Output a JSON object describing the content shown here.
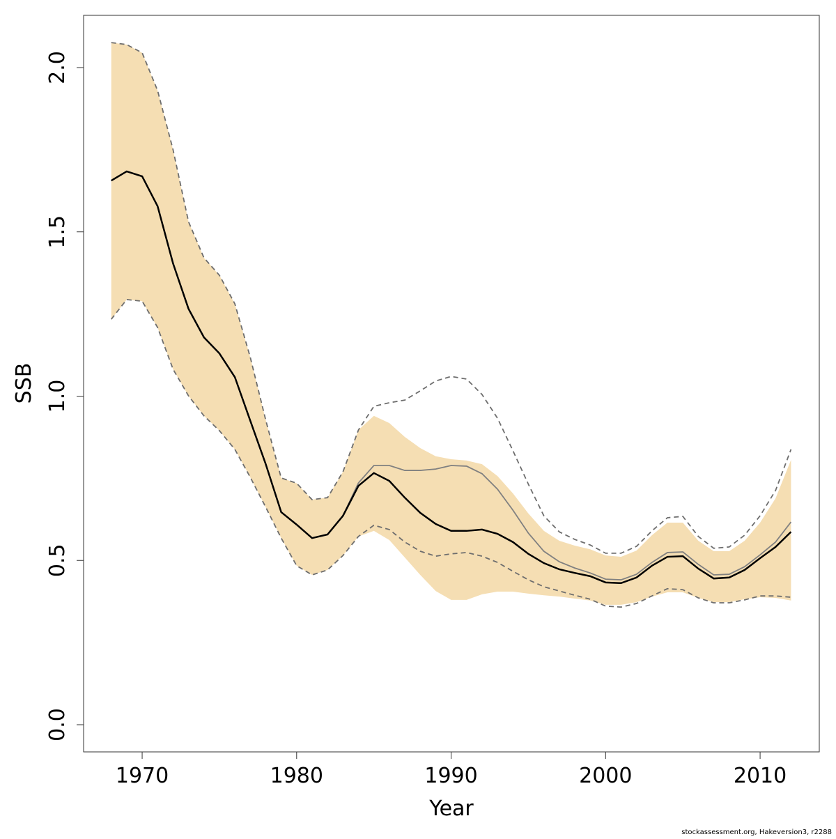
{
  "chart_data": {
    "type": "line",
    "x_label": "Year",
    "y_label": "SSB",
    "footnote": "stockassessment.org, Hakeversion3, r2288",
    "x": [
      1968,
      1969,
      1970,
      1971,
      1972,
      1973,
      1974,
      1975,
      1976,
      1977,
      1978,
      1979,
      1980,
      1981,
      1982,
      1983,
      1984,
      1985,
      1986,
      1987,
      1988,
      1989,
      1990,
      1991,
      1992,
      1993,
      1994,
      1995,
      1996,
      1997,
      1998,
      1999,
      2000,
      2001,
      2002,
      2003,
      2004,
      2005,
      2006,
      2007,
      2008,
      2009,
      2010,
      2011,
      2012
    ],
    "band": {
      "color": "#f5deb3",
      "upper": [
        2.076,
        2.07,
        2.045,
        1.93,
        1.75,
        1.531,
        1.421,
        1.368,
        1.281,
        1.118,
        0.927,
        0.751,
        0.735,
        0.685,
        0.691,
        0.77,
        0.897,
        0.94,
        0.918,
        0.876,
        0.842,
        0.817,
        0.808,
        0.804,
        0.793,
        0.757,
        0.704,
        0.643,
        0.59,
        0.56,
        0.545,
        0.534,
        0.515,
        0.511,
        0.53,
        0.577,
        0.615,
        0.615,
        0.56,
        0.528,
        0.528,
        0.56,
        0.615,
        0.689,
        0.806
      ],
      "lower": [
        1.234,
        1.294,
        1.289,
        1.209,
        1.082,
        1.001,
        0.94,
        0.895,
        0.838,
        0.753,
        0.662,
        0.568,
        0.484,
        0.456,
        0.471,
        0.515,
        0.573,
        0.59,
        0.562,
        0.509,
        0.456,
        0.407,
        0.38,
        0.38,
        0.397,
        0.405,
        0.405,
        0.399,
        0.394,
        0.39,
        0.384,
        0.378,
        0.365,
        0.365,
        0.373,
        0.39,
        0.403,
        0.403,
        0.386,
        0.373,
        0.373,
        0.382,
        0.388,
        0.386,
        0.378
      ]
    },
    "series": [
      {
        "color": "#6e6e6e",
        "dash": true,
        "values": [
          2.076,
          2.07,
          2.045,
          1.93,
          1.75,
          1.531,
          1.421,
          1.368,
          1.281,
          1.118,
          0.927,
          0.751,
          0.735,
          0.685,
          0.691,
          0.77,
          0.897,
          0.969,
          0.98,
          0.988,
          1.016,
          1.046,
          1.06,
          1.052,
          1.005,
          0.933,
          0.834,
          0.732,
          0.636,
          0.587,
          0.564,
          0.547,
          0.522,
          0.522,
          0.543,
          0.59,
          0.63,
          0.634,
          0.573,
          0.537,
          0.541,
          0.577,
          0.636,
          0.713,
          0.838
        ]
      },
      {
        "color": "#6e6e6e",
        "dash": true,
        "values": [
          1.234,
          1.294,
          1.289,
          1.209,
          1.082,
          1.001,
          0.94,
          0.895,
          0.838,
          0.753,
          0.662,
          0.568,
          0.484,
          0.456,
          0.471,
          0.515,
          0.573,
          0.607,
          0.594,
          0.556,
          0.528,
          0.513,
          0.52,
          0.524,
          0.513,
          0.494,
          0.467,
          0.441,
          0.42,
          0.407,
          0.394,
          0.382,
          0.361,
          0.358,
          0.369,
          0.392,
          0.414,
          0.411,
          0.386,
          0.371,
          0.371,
          0.38,
          0.392,
          0.392,
          0.388
        ]
      },
      {
        "color": "#808080",
        "dash": false,
        "values": [
          1.656,
          1.684,
          1.669,
          1.578,
          1.404,
          1.266,
          1.179,
          1.13,
          1.058,
          0.925,
          0.793,
          0.647,
          0.609,
          0.568,
          0.579,
          0.636,
          0.736,
          0.789,
          0.789,
          0.774,
          0.774,
          0.778,
          0.789,
          0.787,
          0.764,
          0.717,
          0.653,
          0.583,
          0.528,
          0.496,
          0.477,
          0.462,
          0.443,
          0.441,
          0.458,
          0.494,
          0.524,
          0.526,
          0.488,
          0.456,
          0.458,
          0.481,
          0.517,
          0.556,
          0.617
        ]
      },
      {
        "color": "#000000",
        "dash": false,
        "values": [
          1.656,
          1.684,
          1.669,
          1.578,
          1.404,
          1.266,
          1.179,
          1.13,
          1.058,
          0.925,
          0.793,
          0.647,
          0.609,
          0.568,
          0.579,
          0.636,
          0.727,
          0.766,
          0.742,
          0.691,
          0.645,
          0.611,
          0.59,
          0.59,
          0.594,
          0.581,
          0.556,
          0.52,
          0.492,
          0.473,
          0.462,
          0.452,
          0.433,
          0.431,
          0.448,
          0.484,
          0.511,
          0.513,
          0.475,
          0.445,
          0.448,
          0.471,
          0.507,
          0.541,
          0.587
        ]
      }
    ],
    "xlim": [
      1966.21,
      2013.83
    ],
    "ylim": [
      -0.0827,
      2.159
    ],
    "xticks": [
      1970,
      1980,
      1990,
      2000,
      2010
    ],
    "yticks": [
      {
        "value": 0,
        "label": "0.0"
      },
      0.5,
      {
        "value": 1,
        "label": "1.0"
      },
      1.5,
      {
        "value": 2,
        "label": "2.0"
      }
    ]
  }
}
